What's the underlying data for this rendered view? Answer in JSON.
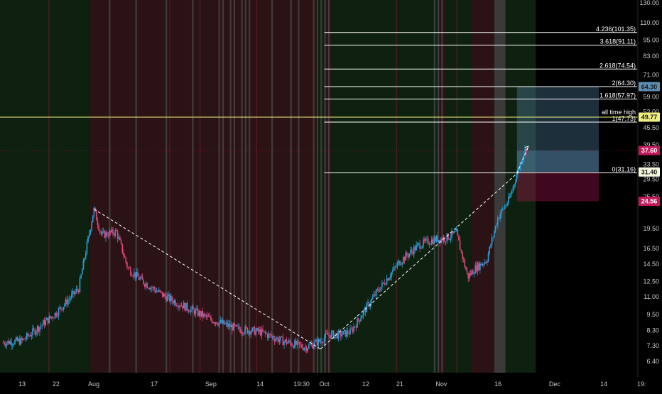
{
  "chart_data": {
    "type": "candlestick",
    "title": "",
    "xlabel": "",
    "ylabel": "",
    "y_scale": "log",
    "ylim": [
      5.6,
      131
    ],
    "x_ticks": [
      "13",
      "22",
      "Aug",
      "17",
      "Sep",
      "14",
      "19:30",
      "Oct",
      "12",
      "21",
      "Nov",
      "16",
      "Dec",
      "14",
      "19:"
    ],
    "y_ticks": [
      130.0,
      110.0,
      95.0,
      83.0,
      71.0,
      59.0,
      52.0,
      45.5,
      39.5,
      33.5,
      29.5,
      25.5,
      19.5,
      16.5,
      14.5,
      12.5,
      11.0,
      9.5,
      8.3,
      7.3,
      6.4
    ],
    "y_tick_labels": [
      "130.00",
      "110.00",
      "95.00",
      "83.00",
      "71.00",
      "59.00",
      "52.00",
      "45.50",
      "39.50",
      "33.50",
      "29.50",
      "25.50",
      "19.50",
      "16.50",
      "14.50",
      "12.50",
      "11.00",
      "9.50",
      "8.30",
      "7.30",
      "6.40"
    ],
    "price_series": {
      "x_dates": [
        "Jul 8",
        "Jul 13",
        "Jul 22",
        "Jul 28",
        "Aug 1",
        "Aug 3",
        "Aug 7",
        "Aug 10",
        "Aug 14",
        "Aug 20",
        "Aug 26",
        "Sep 1",
        "Sep 8",
        "Sep 14",
        "Sep 20",
        "Sep 26",
        "Sep 30",
        "Oct 2",
        "Oct 5",
        "Oct 8",
        "Oct 11",
        "Oct 15",
        "Oct 21",
        "Oct 26",
        "Oct 30",
        "Nov 2",
        "Nov 5",
        "Nov 6",
        "Nov 8",
        "Nov 10",
        "Nov 13",
        "Nov 16",
        "Nov 19",
        "Nov 21",
        "Nov 23"
      ],
      "close": [
        7.5,
        7.6,
        9.6,
        11.8,
        23.0,
        18.5,
        19.0,
        14.0,
        12.5,
        11.0,
        10.0,
        9.1,
        8.4,
        8.2,
        7.6,
        7.2,
        7.6,
        8.0,
        8.0,
        8.2,
        9.5,
        11.5,
        14.8,
        17.0,
        17.8,
        18.0,
        18.8,
        16.5,
        13.0,
        14.0,
        15.0,
        21.5,
        25.0,
        31.0,
        37.6
      ]
    },
    "fib_levels": [
      {
        "label": "4.236(101.35)",
        "value": 101.35
      },
      {
        "label": "3.618(91.11)",
        "value": 91.11
      },
      {
        "label": "2.618(74.54)",
        "value": 74.54
      },
      {
        "label": "2(64.30)",
        "value": 64.3
      },
      {
        "label": "1.618(57.97)",
        "value": 57.97
      },
      {
        "label": "1(47.73)",
        "value": 47.73
      },
      {
        "label": "0(31.16)",
        "value": 31.16
      }
    ],
    "ath_line": {
      "label": "all time high",
      "value": 49.77
    },
    "price_tags": [
      {
        "label": "64.30",
        "value": 64.3,
        "color": "#5b8fb5",
        "text_color": "#1a1a1a"
      },
      {
        "label": "49.77",
        "value": 49.77,
        "color": "#f0f080",
        "text_color": "#1a1a1a"
      },
      {
        "label": "37.60",
        "value": 37.6,
        "color": "#c2185b",
        "text_color": "#ffffff"
      },
      {
        "label": "31.40",
        "value": 31.4,
        "color": "#f5f5dc",
        "text_color": "#1a1a1a"
      },
      {
        "label": "24.56",
        "value": 24.56,
        "color": "#c2185b",
        "text_color": "#ffffff"
      }
    ],
    "position_box": {
      "entry": 31.4,
      "target": 64.3,
      "stop": 24.56,
      "profit_color": "#5b8fb5",
      "loss_color": "#c2185b"
    },
    "trend_lines": [
      {
        "from_date": "Aug 1",
        "from": 23.0,
        "to_date": "Sep 30",
        "to": 7.1
      },
      {
        "from_date": "Sep 30",
        "from": 7.1,
        "to_date": "Nov 21",
        "to": 31.0
      },
      {
        "from_date": "Nov 21",
        "from": 31.0,
        "to_date": "Nov 24",
        "to": 39.0
      }
    ],
    "colors": {
      "background": "#000000",
      "bull_zone": "#0e200f",
      "bear_zone": "#2b1214",
      "neutral_zone": "#3a3a3a",
      "candle_up": "#26a0da",
      "candle_down": "#e0457b",
      "fib_line": "#ffffff",
      "ath_line": "#f0f080",
      "dashed_line": "#ffffff",
      "axis_text": "#c8c8c8"
    },
    "grid": false
  }
}
